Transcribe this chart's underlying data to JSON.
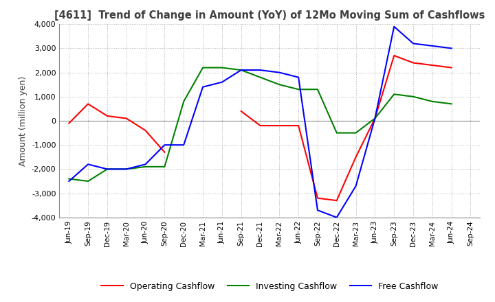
{
  "title": "[4611]  Trend of Change in Amount (YoY) of 12Mo Moving Sum of Cashflows",
  "ylabel": "Amount (million yen)",
  "ylim": [
    -4000,
    4000
  ],
  "yticks": [
    -4000,
    -3000,
    -2000,
    -1000,
    0,
    1000,
    2000,
    3000,
    4000
  ],
  "x_labels": [
    "Jun-19",
    "Sep-19",
    "Dec-19",
    "Mar-20",
    "Jun-20",
    "Sep-20",
    "Dec-20",
    "Mar-21",
    "Jun-21",
    "Sep-21",
    "Dec-21",
    "Mar-22",
    "Jun-22",
    "Sep-22",
    "Dec-22",
    "Mar-23",
    "Jun-23",
    "Sep-23",
    "Dec-23",
    "Mar-24",
    "Jun-24",
    "Sep-24"
  ],
  "operating": [
    -100,
    700,
    200,
    100,
    -400,
    -1300,
    null,
    null,
    null,
    400,
    -200,
    -200,
    -200,
    -3200,
    -3300,
    -1500,
    100,
    2700,
    2400,
    2300,
    2200,
    null
  ],
  "investing": [
    -2400,
    -2500,
    -2000,
    -2000,
    -1900,
    -1900,
    800,
    2200,
    2200,
    2100,
    1800,
    1500,
    1300,
    1300,
    -500,
    -500,
    100,
    1100,
    1000,
    800,
    700,
    null
  ],
  "free": [
    -2500,
    -1800,
    -2000,
    -2000,
    -1800,
    -1000,
    -1000,
    1400,
    1600,
    2100,
    2100,
    2000,
    1800,
    -3700,
    -4000,
    -2700,
    100,
    3900,
    3200,
    3100,
    3000,
    null
  ],
  "operating_color": "#ff0000",
  "investing_color": "#008000",
  "free_color": "#0000ff",
  "background_color": "#ffffff",
  "grid_color": "#b0b0b0",
  "grid_style": "dotted",
  "title_color": "#404040"
}
